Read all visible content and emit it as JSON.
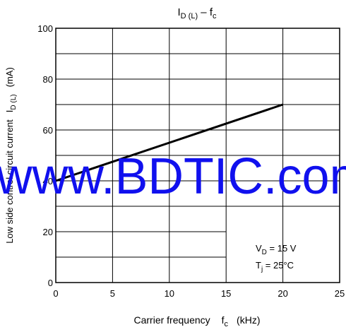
{
  "chart_data": {
    "type": "line",
    "title": {
      "main": "I",
      "main_sub": "D (L)",
      "sep": " – ",
      "var": "f",
      "var_sub": "c"
    },
    "xlabel": {
      "text": "Carrier frequency",
      "var": "f",
      "var_sub": "c",
      "unit": "(kHz)"
    },
    "ylabel": {
      "text": "Low side control circuit current",
      "var": "I",
      "var_sub": "D (L)",
      "unit": "(mA)"
    },
    "xlim": [
      0,
      25
    ],
    "ylim": [
      0,
      100
    ],
    "x_ticks": [
      0,
      5,
      10,
      15,
      20,
      25
    ],
    "y_ticks": [
      0,
      20,
      40,
      60,
      80,
      100
    ],
    "x_tick_labels": [
      "0",
      "5",
      "10",
      "15",
      "20",
      "25"
    ],
    "y_tick_labels": [
      "0",
      "20",
      "40",
      "60",
      "80",
      "100"
    ],
    "grid": true,
    "series": [
      {
        "x": [
          0,
          20
        ],
        "y": [
          40,
          70
        ]
      }
    ],
    "annotations": [
      {
        "var": "V",
        "sub": "D",
        "text": " = 15 V"
      },
      {
        "var": "T",
        "sub": "j",
        "text": " = 25°C"
      }
    ]
  },
  "watermark": "www.BDTIC.com"
}
